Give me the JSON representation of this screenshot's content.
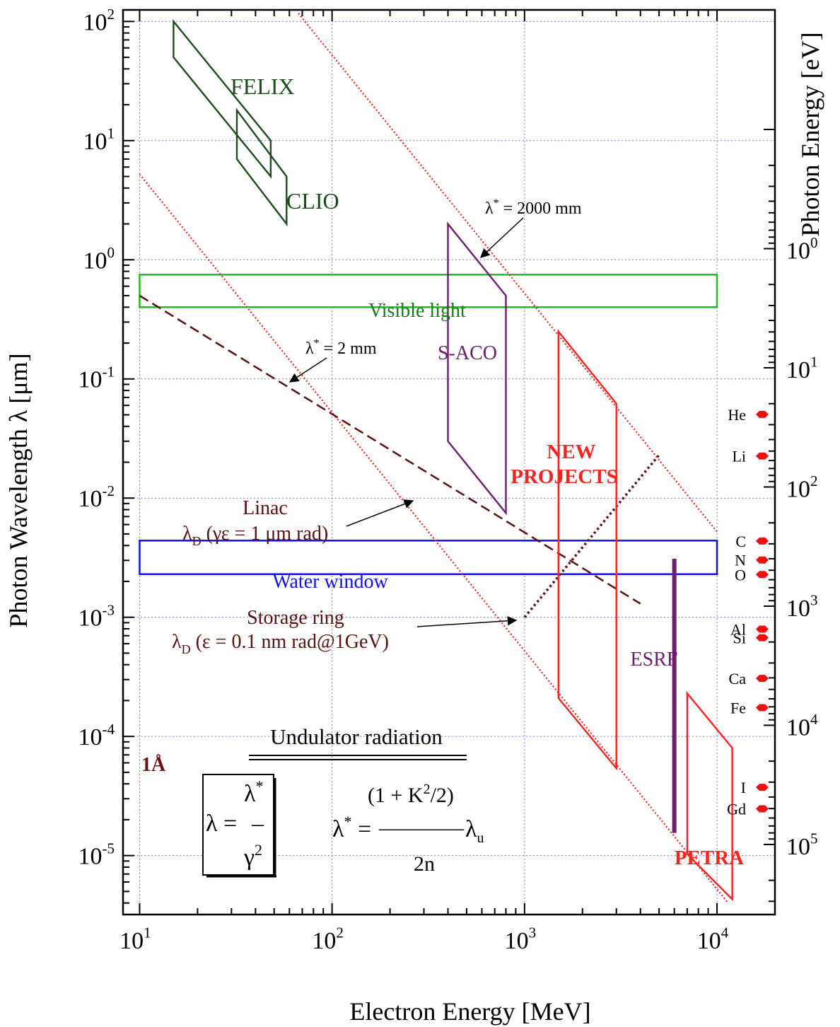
{
  "chart_data": {
    "type": "line",
    "xlabel": "Electron Energy [MeV]",
    "ylabel": "Photon Wavelength  λ [μm]",
    "ylabel_right": "Photon Energy [eV]",
    "xscale": "log",
    "yscale": "log",
    "xlim": [
      8.2,
      20000
    ],
    "ylim": [
      3.2e-06,
      125
    ],
    "grid": true,
    "x_ticks": [
      {
        "value": 10,
        "base": "10",
        "exp": "1"
      },
      {
        "value": 100,
        "base": "10",
        "exp": "2"
      },
      {
        "value": 1000,
        "base": "10",
        "exp": "3"
      },
      {
        "value": 10000,
        "base": "10",
        "exp": "4"
      }
    ],
    "y_ticks": [
      {
        "value": 100,
        "base": "10",
        "exp": "2"
      },
      {
        "value": 10,
        "base": "10",
        "exp": "1"
      },
      {
        "value": 1,
        "base": "10",
        "exp": "0"
      },
      {
        "value": 0.1,
        "base": "10",
        "exp": "-1"
      },
      {
        "value": 0.01,
        "base": "10",
        "exp": "-2"
      },
      {
        "value": 0.001,
        "base": "10",
        "exp": "-3"
      },
      {
        "value": 0.0001,
        "base": "10",
        "exp": "-4"
      },
      {
        "value": 1e-05,
        "base": "10",
        "exp": "-5"
      }
    ],
    "right_ticks": [
      {
        "value": 1,
        "base": "10",
        "exp": "0"
      },
      {
        "value": 10,
        "base": "10",
        "exp": "1"
      },
      {
        "value": 100,
        "base": "10",
        "exp": "2"
      },
      {
        "value": 1000,
        "base": "10",
        "exp": "3"
      },
      {
        "value": 10000,
        "base": "10",
        "exp": "4"
      },
      {
        "value": 100000,
        "base": "10",
        "exp": "5"
      }
    ],
    "ev_um_constant": 1.2398,
    "regions": [
      {
        "name": "FELIX",
        "color": "#1e4a1e",
        "label_pos": [
          38,
          28
        ],
        "points": [
          [
            15,
            100
          ],
          [
            15,
            50
          ],
          [
            48,
            5
          ],
          [
            48,
            10
          ]
        ]
      },
      {
        "name": "CLIO",
        "color": "#1e4a1e",
        "label_pos": [
          82,
          3.3
        ],
        "points": [
          [
            32,
            18
          ],
          [
            32,
            7
          ],
          [
            58,
            2
          ],
          [
            58,
            5
          ]
        ]
      },
      {
        "name": "S-ACO",
        "color": "#6b1f6b",
        "label_pos": [
          560,
          0.4
        ],
        "points": [
          [
            400,
            2
          ],
          [
            400,
            0.03
          ],
          [
            800,
            0.0075
          ],
          [
            800,
            0.5
          ]
        ]
      },
      {
        "name": "NEW\nPROJECTS",
        "color": "#ff2020",
        "bold": true,
        "label_pos": [
          1800,
          0.028
        ],
        "points": [
          [
            1500,
            0.25
          ],
          [
            1500,
            0.00021
          ],
          [
            3000,
            5.4e-05
          ],
          [
            3000,
            0.062
          ]
        ]
      },
      {
        "name": "PETRA",
        "color": "#ff2020",
        "bold": true,
        "label_pos": [
          9700,
          2.15e-05
        ],
        "points": [
          [
            7000,
            0.00023
          ],
          [
            7000,
            1.03e-05
          ],
          [
            12000,
            4.3e-06
          ],
          [
            12000,
            8e-05
          ]
        ]
      }
    ],
    "bands": [
      {
        "name": "Visible light",
        "color": "#22bb22",
        "x": [
          10,
          10000
        ],
        "y": [
          0.4,
          0.75
        ]
      },
      {
        "name": "Water window",
        "color": "#1010ee",
        "x": [
          10,
          10000
        ],
        "y": [
          0.0023,
          0.0044
        ]
      }
    ],
    "esrf": {
      "name": "ESRF",
      "color": "#6b1f6b",
      "x": 6000,
      "y": [
        1.55e-05,
        0.0031
      ],
      "label_pos": [
        6000,
        0.00058
      ]
    },
    "reference_lines": [
      {
        "name": "λ* = 2 mm",
        "style": "dotted",
        "color": "#ee2020",
        "lambda_star_um": 2000,
        "x_range": [
          10,
          20000
        ]
      },
      {
        "name": "λ* = 2000 mm",
        "style": "dotted",
        "color": "#ee2020",
        "lambda_star_um": 2000000,
        "x_range": [
          10,
          10000
        ]
      },
      {
        "name": "Linac",
        "style": "dashed",
        "color": "#5a1010",
        "points": [
          [
            10,
            0.5
          ],
          [
            4000,
            0.0013
          ]
        ]
      },
      {
        "name": "Storage ring",
        "style": "dotted",
        "color": "#5a1020",
        "points": [
          [
            1000,
            0.001
          ],
          [
            5000,
            0.023
          ]
        ]
      }
    ],
    "elements": [
      {
        "symbol": "He",
        "ev": 24.6
      },
      {
        "symbol": "Li",
        "ev": 55
      },
      {
        "symbol": "C",
        "ev": 284
      },
      {
        "symbol": "N",
        "ev": 410
      },
      {
        "symbol": "O",
        "ev": 543
      },
      {
        "symbol": "Al",
        "ev": 1560
      },
      {
        "symbol": "Si",
        "ev": 1840
      },
      {
        "symbol": "Ca",
        "ev": 4040
      },
      {
        "symbol": "Fe",
        "ev": 7110
      },
      {
        "symbol": "I",
        "ev": 33170
      },
      {
        "symbol": "Gd",
        "ev": 50240
      }
    ],
    "annotations": {
      "felix": "FELIX",
      "clio": "CLIO",
      "lambda2000_pre": "λ",
      "lambda2000_post": " = 2000 mm",
      "lambda2_pre": "λ",
      "lambda2_post": " = 2 mm",
      "star": "*",
      "sanco": "S-ACO",
      "visible": "Visible light",
      "water": "Water window",
      "new1": "NEW",
      "new2": "PROJECTS",
      "esrf": "ESRF",
      "petra": "PETRA",
      "linac_title": "Linac",
      "linac_lambda": "λ",
      "linac_sub": "D",
      "linac_text": " (γε = 1 μm rad)",
      "sr_title": "Storage ring",
      "sr_lambda": "λ",
      "sr_sub": "D",
      "sr_text": " (ε = 0.1 nm rad@1GeV)",
      "angstrom": "1Å",
      "undulator": "Undulator radiation",
      "formula1_lhs": "λ =",
      "formula1_num": "λ",
      "formula1_dash": "–",
      "formula1_den": "γ",
      "formula1_den_exp": "2",
      "formula2_num": "(1 + K",
      "formula2_num_exp": "2",
      "formula2_num_end": "/2)",
      "formula2_lhs": "λ",
      "formula2_eq": " = ",
      "formula2_bar": "––––––––",
      "formula2_lu": " λ",
      "formula2_lu_sub": "u",
      "formula2_den": "2n"
    }
  }
}
